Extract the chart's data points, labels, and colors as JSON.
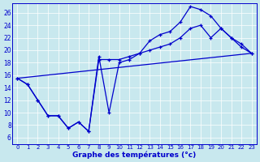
{
  "xlabel": "Graphe des températures (°c)",
  "bg_color": "#c8e8ee",
  "line_color": "#0000cc",
  "xlim": [
    -0.5,
    23.5
  ],
  "ylim": [
    5.0,
    27.5
  ],
  "xticks": [
    0,
    1,
    2,
    3,
    4,
    5,
    6,
    7,
    8,
    9,
    10,
    11,
    12,
    13,
    14,
    15,
    16,
    17,
    18,
    19,
    20,
    21,
    22,
    23
  ],
  "yticks": [
    6,
    8,
    10,
    12,
    14,
    16,
    18,
    20,
    22,
    24,
    26
  ],
  "curve_max_x": [
    0,
    1,
    2,
    3,
    4,
    5,
    6,
    7,
    8,
    9,
    10,
    11,
    12,
    13,
    14,
    15,
    16,
    17,
    18,
    19,
    20,
    21,
    22,
    23
  ],
  "curve_max_y": [
    15.5,
    14.5,
    12.0,
    9.5,
    9.5,
    7.5,
    8.5,
    7.0,
    19.0,
    10.0,
    18.0,
    18.5,
    19.5,
    21.5,
    22.5,
    23.0,
    24.5,
    27.0,
    26.5,
    25.5,
    23.5,
    22.0,
    20.5,
    19.5
  ],
  "curve_min_x": [
    0,
    1,
    2,
    3,
    4,
    5,
    6,
    7,
    8,
    9,
    10,
    11,
    12,
    13,
    14,
    15,
    16,
    17,
    18,
    19,
    20,
    21,
    22,
    23
  ],
  "curve_min_y": [
    15.5,
    14.5,
    12.0,
    9.5,
    9.5,
    7.5,
    8.5,
    7.0,
    18.5,
    18.5,
    18.5,
    19.0,
    19.5,
    20.0,
    20.5,
    21.0,
    22.0,
    23.5,
    24.0,
    22.0,
    23.5,
    22.0,
    21.0,
    19.5
  ],
  "curve_trend_x": [
    0,
    23
  ],
  "curve_trend_y": [
    15.5,
    19.5
  ]
}
